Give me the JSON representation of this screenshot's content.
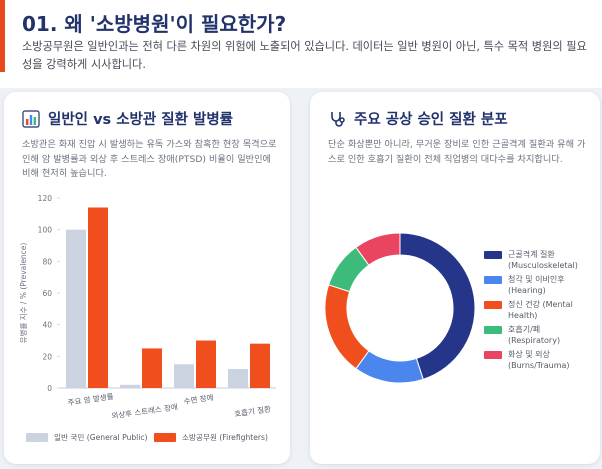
{
  "header": {
    "title": "01. 왜 '소방병원'이 필요한가?",
    "subtitle": "소방공무원은 일반인과는 전혀 다른 차원의 위험에 노출되어 있습니다. 데이터는 일반 병원이 아닌, 특수 목적 병원의 필요성을 강력하게 시사합니다."
  },
  "left_card": {
    "title": "일반인 vs 소방관 질환 발병률",
    "icon": "bar-chart-icon",
    "description": "소방관은 화재 진압 시 발생하는 유독 가스와 참혹한 현장 목격으로 인해 암 발병률과 외상 후 스트레스 장애(PTSD) 비율이 일반인에 비해 현저히 높습니다."
  },
  "right_card": {
    "title": "주요 공상 승인 질환 분포",
    "icon": "stethoscope-icon",
    "description": "단순 화상뿐만 아니라, 무거운 장비로 인한 근골격계 질환과 유해 가스로 인한 호흡기 질환이 전체 직업병의 대다수를 차지합니다."
  },
  "chart_data": [
    {
      "type": "bar",
      "categories": [
        "주요 암 발생률",
        "외상후 스트레스 장애",
        "수면 장애",
        "호흡기 질환"
      ],
      "series": [
        {
          "name": "일반 국민 (General Public)",
          "color": "#cbd3e1",
          "values": [
            100,
            2,
            15,
            12
          ]
        },
        {
          "name": "소방공무원 (Firefighters)",
          "color": "#f04e1d",
          "values": [
            114,
            25,
            30,
            28
          ]
        }
      ],
      "ylabel": "유병률 지수 / % (Prevalence)",
      "xlabel": "",
      "ylim": [
        0,
        120
      ],
      "yticks": [
        0,
        20,
        40,
        60,
        80,
        100,
        120
      ],
      "grid": false,
      "legend": "bottom"
    },
    {
      "type": "pie",
      "donut": true,
      "labels": [
        "근골격계 질환 (Musculoskeletal)",
        "청각 및 이비인후 (Hearing)",
        "정신 건강 (Mental Health)",
        "호흡기/폐 (Respiratory)",
        "화상 및 외상 (Burns/Trauma)"
      ],
      "legend_lines": [
        [
          "근골격계 질환",
          "(Musculoskeletal)"
        ],
        [
          "청각 및 이비인후",
          "(Hearing)"
        ],
        [
          "정신 건강 (Mental",
          "Health)"
        ],
        [
          "호흡기/폐",
          "(Respiratory)"
        ],
        [
          "화상 및 외상",
          "(Burns/Trauma)"
        ]
      ],
      "values": [
        45,
        15,
        20,
        10,
        10
      ],
      "colors": [
        "#25368a",
        "#4a86ee",
        "#f04e1d",
        "#3dbb7a",
        "#e94560"
      ],
      "legend": "right"
    }
  ]
}
